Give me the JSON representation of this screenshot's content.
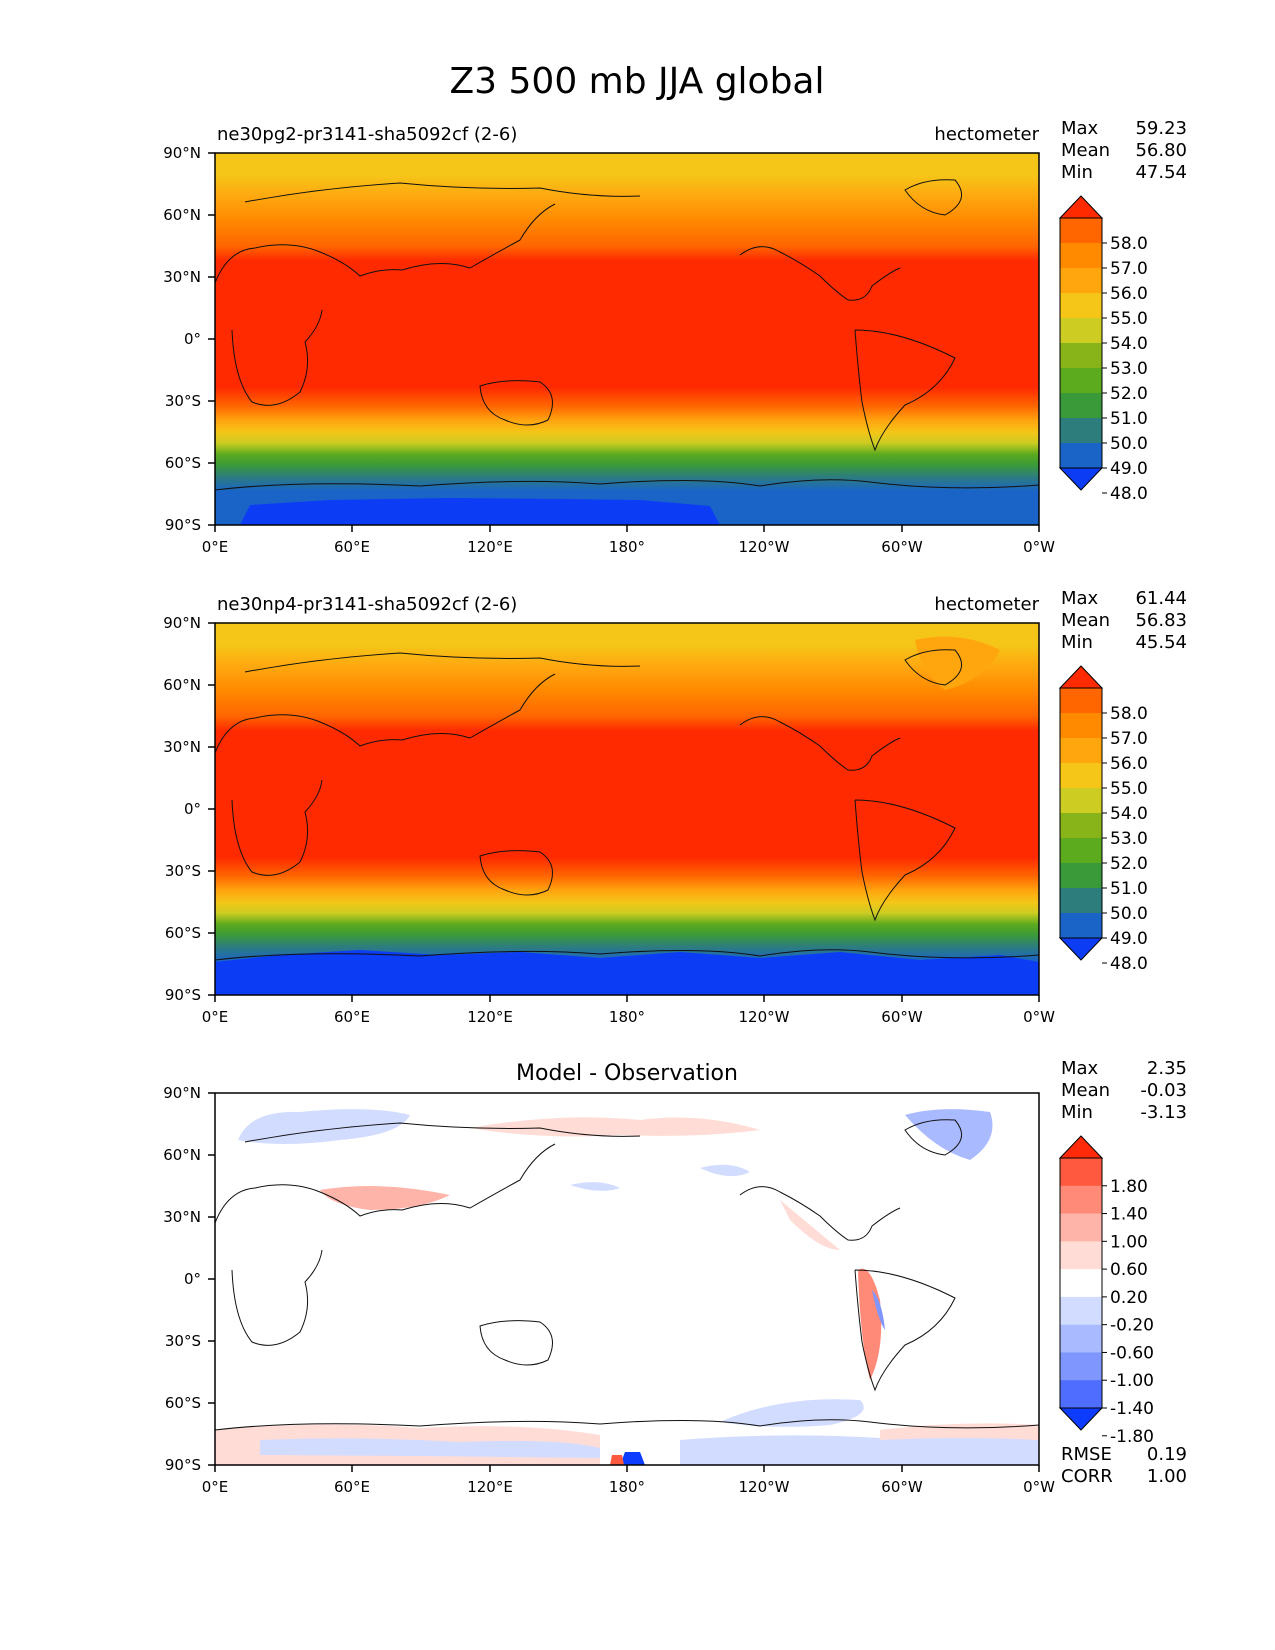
{
  "figure": {
    "title": "Z3 500 mb JJA global"
  },
  "chart_data": [
    {
      "type": "heatmap",
      "name": "test",
      "title_left": "ne30pg2-pr3141-sha5092cf (2-6)",
      "title_right": "hectometer",
      "stats": [
        {
          "label": "Max",
          "value": "59.23"
        },
        {
          "label": "Mean",
          "value": "56.80"
        },
        {
          "label": "Min",
          "value": "47.54"
        }
      ],
      "xticks": [
        "0°E",
        "60°E",
        "120°E",
        "180°",
        "120°W",
        "60°W",
        "0°W"
      ],
      "yticks": [
        "90°N",
        "60°N",
        "30°N",
        "0°",
        "30°S",
        "60°S",
        "90°S"
      ],
      "xlim": [
        0,
        360
      ],
      "ylim": [
        -90,
        90
      ],
      "colorbar": {
        "levels": [
          "58.0",
          "57.0",
          "56.0",
          "55.0",
          "54.0",
          "53.0",
          "52.0",
          "51.0",
          "50.0",
          "49.0",
          "48.0"
        ],
        "colors": [
          "#ff2a00",
          "#ff6600",
          "#ff8a00",
          "#ffa60f",
          "#f5c518",
          "#cccc22",
          "#88b41a",
          "#5caa1e",
          "#3a9a3a",
          "#2d7d7d",
          "#1a64c8",
          "#0d3cf5"
        ]
      }
    },
    {
      "type": "heatmap",
      "name": "ref",
      "title_left": "ne30np4-pr3141-sha5092cf (2-6)",
      "title_right": "hectometer",
      "stats": [
        {
          "label": "Max",
          "value": "61.44"
        },
        {
          "label": "Mean",
          "value": "56.83"
        },
        {
          "label": "Min",
          "value": "45.54"
        }
      ],
      "xticks": [
        "0°E",
        "60°E",
        "120°E",
        "180°",
        "120°W",
        "60°W",
        "0°W"
      ],
      "yticks": [
        "90°N",
        "60°N",
        "30°N",
        "0°",
        "30°S",
        "60°S",
        "90°S"
      ],
      "xlim": [
        0,
        360
      ],
      "ylim": [
        -90,
        90
      ],
      "colorbar": {
        "levels": [
          "58.0",
          "57.0",
          "56.0",
          "55.0",
          "54.0",
          "53.0",
          "52.0",
          "51.0",
          "50.0",
          "49.0",
          "48.0"
        ],
        "colors": [
          "#ff2a00",
          "#ff6600",
          "#ff8a00",
          "#ffa60f",
          "#f5c518",
          "#cccc22",
          "#88b41a",
          "#5caa1e",
          "#3a9a3a",
          "#2d7d7d",
          "#1a64c8",
          "#0d3cf5"
        ]
      }
    },
    {
      "type": "heatmap",
      "name": "diff",
      "title_center": "Model - Observation",
      "stats": [
        {
          "label": "Max",
          "value": "2.35"
        },
        {
          "label": "Mean",
          "value": "-0.03"
        },
        {
          "label": "Min",
          "value": "-3.13"
        }
      ],
      "footer_stats": [
        {
          "label": "RMSE",
          "value": "0.19"
        },
        {
          "label": "CORR",
          "value": "1.00"
        }
      ],
      "xticks": [
        "0°E",
        "60°E",
        "120°E",
        "180°",
        "120°W",
        "60°W",
        "0°W"
      ],
      "yticks": [
        "90°N",
        "60°N",
        "30°N",
        "0°",
        "30°S",
        "60°S",
        "90°S"
      ],
      "xlim": [
        0,
        360
      ],
      "ylim": [
        -90,
        90
      ],
      "colorbar": {
        "levels": [
          "1.80",
          "1.40",
          "1.00",
          "0.60",
          "0.20",
          "-0.20",
          "-0.60",
          "-1.00",
          "-1.40",
          "-1.80"
        ],
        "colors": [
          "#ff2a0a",
          "#ff5a40",
          "#ff8a78",
          "#ffb4aa",
          "#ffdcd6",
          "#ffffff",
          "#d2dcff",
          "#aabaff",
          "#7f96ff",
          "#4f6eff",
          "#0d3cff"
        ]
      }
    }
  ]
}
